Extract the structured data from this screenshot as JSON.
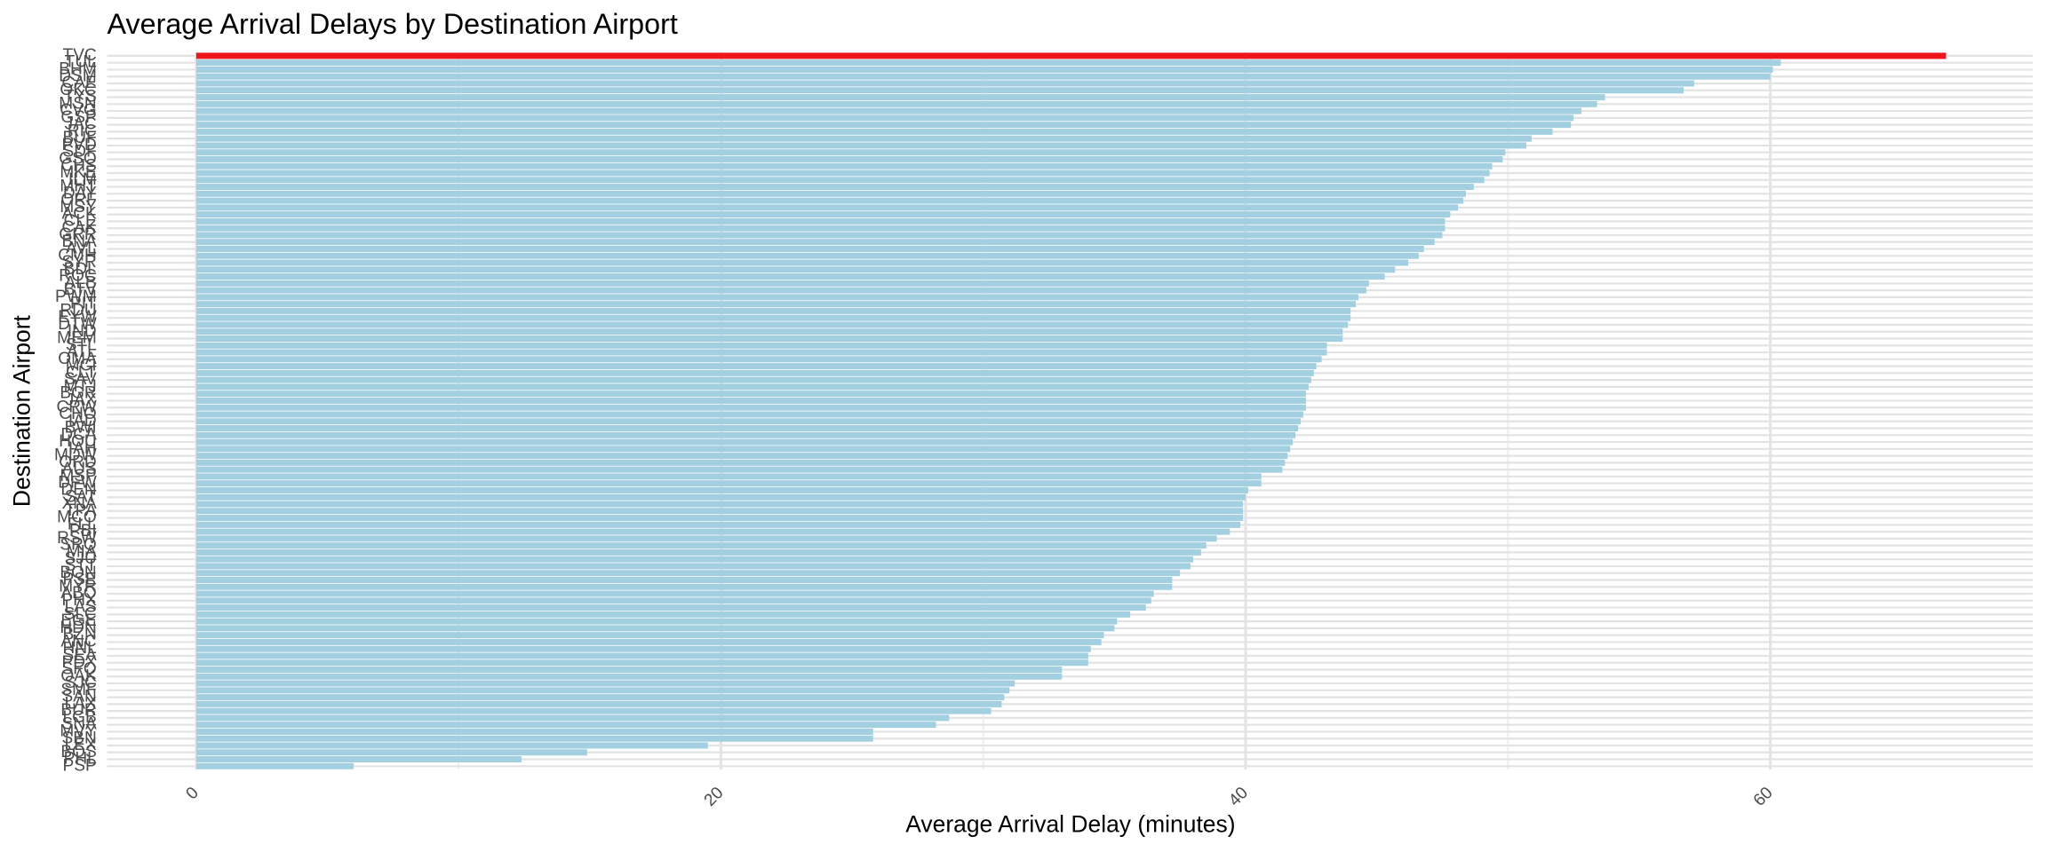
{
  "chart_data": {
    "type": "barh",
    "title": "Average Arrival Delays by Destination Airport",
    "xlabel": "Average Arrival Delay (minutes)",
    "ylabel": "Destination Airport",
    "categories": [
      "TVC",
      "TUL",
      "BHM",
      "DSM",
      "CAE",
      "OKC",
      "TYS",
      "MSN",
      "CVG",
      "GSP",
      "JAC",
      "RIC",
      "BUF",
      "PVD",
      "SDF",
      "GSO",
      "CHS",
      "MKE",
      "ILM",
      "MHT",
      "DAY",
      "ORF",
      "MSY",
      "ACK",
      "CLE",
      "CAK",
      "GRR",
      "BNA",
      "AVL",
      "CMH",
      "SYR",
      "BDL",
      "ROC",
      "ALB",
      "BTV",
      "PWM",
      "PIT",
      "RDU",
      "EYW",
      "DTW",
      "IND",
      "MEM",
      "STL",
      "ATL",
      "OMA",
      "MCI",
      "CLT",
      "SAV",
      "MTJ",
      "BGR",
      "JAX",
      "CRW",
      "CHO",
      "IAD",
      "BWI",
      "DCA",
      "HOU",
      "IAH",
      "MDW",
      "ORD",
      "AUS",
      "MSP",
      "DFW",
      "DEN",
      "SAT",
      "XNA",
      "TPA",
      "MCO",
      "FLL",
      "PBI",
      "RSW",
      "SRQ",
      "MIA",
      "SJU",
      "STT",
      "BQN",
      "PSE",
      "MYR",
      "ABQ",
      "PHX",
      "LAS",
      "SLC",
      "EGE",
      "HDN",
      "BZN",
      "ANC",
      "HNL",
      "SEA",
      "PDX",
      "SFO",
      "OAK",
      "SJC",
      "SMF",
      "SAN",
      "LAX",
      "BUR",
      "LGB",
      "SNA",
      "MVY",
      "SBN",
      "LEX",
      "BOS",
      "PHL",
      "PSP"
    ],
    "values": [
      66.7,
      60.4,
      60.1,
      60.0,
      57.1,
      56.7,
      53.7,
      53.4,
      52.8,
      52.5,
      52.4,
      51.7,
      50.9,
      50.7,
      49.9,
      49.8,
      49.4,
      49.3,
      49.1,
      48.7,
      48.4,
      48.3,
      48.1,
      47.8,
      47.6,
      47.6,
      47.5,
      47.2,
      46.8,
      46.6,
      46.2,
      45.7,
      45.3,
      44.7,
      44.6,
      44.3,
      44.2,
      44.0,
      44.0,
      43.9,
      43.7,
      43.7,
      43.1,
      43.1,
      42.9,
      42.7,
      42.6,
      42.5,
      42.4,
      42.3,
      42.3,
      42.3,
      42.2,
      42.1,
      42.0,
      41.9,
      41.8,
      41.7,
      41.6,
      41.5,
      41.4,
      40.6,
      40.6,
      40.1,
      40.0,
      39.9,
      39.9,
      39.9,
      39.8,
      39.4,
      38.9,
      38.5,
      38.3,
      38.0,
      37.9,
      37.5,
      37.2,
      37.2,
      36.5,
      36.4,
      36.2,
      35.6,
      35.1,
      35.0,
      34.6,
      34.5,
      34.1,
      34.0,
      34.0,
      33.0,
      33.0,
      31.2,
      31.0,
      30.8,
      30.7,
      30.3,
      28.7,
      28.2,
      25.8,
      25.8,
      19.5,
      14.9,
      12.4,
      6.0
    ],
    "color": "#a3d0e0",
    "highlight_max_color": "#ee161a",
    "xlim": [
      -3.4,
      70
    ],
    "xticks": [
      0,
      20,
      40,
      60
    ],
    "xminor_ticks": [
      10,
      30,
      50
    ],
    "grid": true
  }
}
